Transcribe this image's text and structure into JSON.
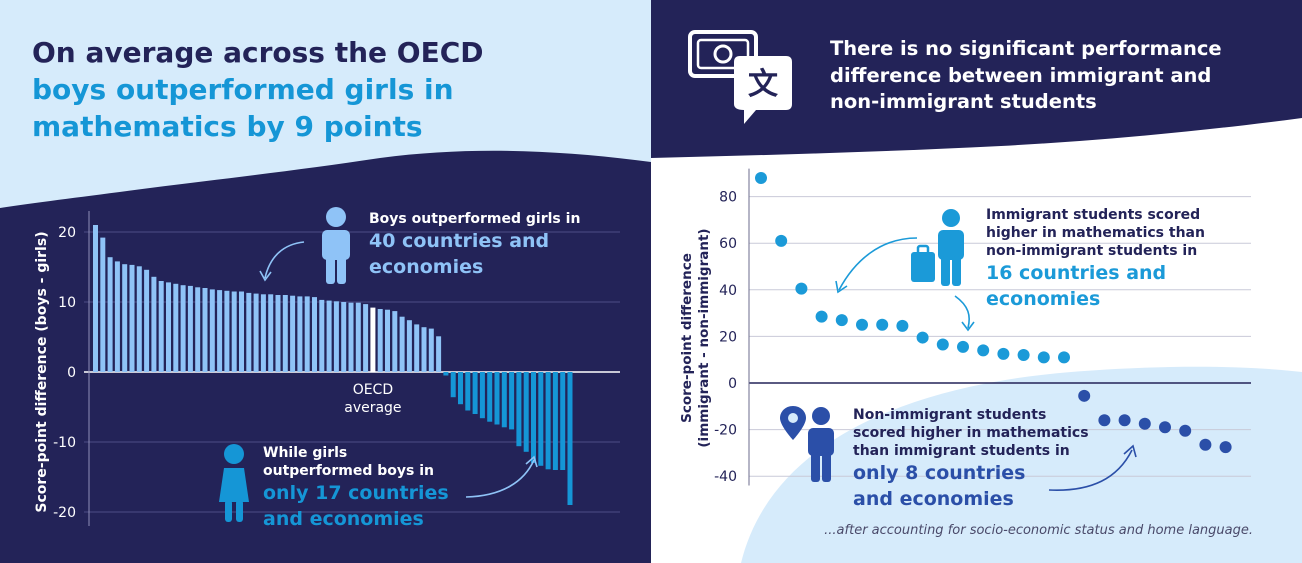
{
  "left": {
    "title_line1": "On average across the OECD",
    "title_line2": "boys outperformed girls in",
    "title_line3": "mathematics by 9 points",
    "annotation_boys_small1": "Boys outperformed girls in",
    "annotation_boys_big1": "40 countries and",
    "annotation_boys_big2": "economies",
    "annotation_girls_small1": "While girls",
    "annotation_girls_small2": "outperformed boys in",
    "annotation_girls_big1": "only 17 countries",
    "annotation_girls_big2": "and economies",
    "oecd_label_line1": "OECD",
    "oecd_label_line2": "average"
  },
  "right": {
    "title_line1": "There is no significant performance",
    "title_line2": "difference between immigrant and",
    "title_line3": "non-immigrant students",
    "annotation_immigrant_small1": "Immigrant students scored",
    "annotation_immigrant_small2": "higher in mathematics than",
    "annotation_immigrant_small3": "non-immigrant students in",
    "annotation_immigrant_big1": "16 countries and",
    "annotation_immigrant_big2": "economies",
    "annotation_nonimmigrant_small1": "Non-immigrant students",
    "annotation_nonimmigrant_small2": "scored higher in mathematics",
    "annotation_nonimmigrant_small3": "than immigrant students in",
    "annotation_nonimmigrant_big1": "only 8 countries",
    "annotation_nonimmigrant_big2": "and economies",
    "footnote": "...after accounting for socio-economic status and home language."
  },
  "colors": {
    "navy": "#232358",
    "light_blue_bg": "#d6ebfb",
    "bright_blue": "#1596d6",
    "light_bar": "#8fc3f7",
    "dot_blue": "#1b9ad8",
    "dot_dark": "#2b4fa8"
  },
  "icons": [
    "boy-icon",
    "girl-icon",
    "money-speech-icon",
    "immigrant-suitcase-icon",
    "location-pin-person-icon"
  ],
  "chart_data": [
    {
      "type": "bar",
      "title": "",
      "xlabel": "",
      "ylabel": "Score-point difference (boys - girls)",
      "ylim": [
        -22,
        23
      ],
      "yticks": [
        20,
        10,
        0,
        -10,
        -20
      ],
      "grid": true,
      "highlight_index": 38,
      "highlight_label": "OECD average",
      "values": [
        21,
        19.2,
        16.4,
        15.8,
        15.4,
        15.3,
        15.1,
        14.6,
        13.6,
        13,
        12.8,
        12.6,
        12.4,
        12.3,
        12.1,
        12,
        11.8,
        11.7,
        11.6,
        11.5,
        11.5,
        11.3,
        11.2,
        11.1,
        11.1,
        11,
        11,
        10.9,
        10.8,
        10.8,
        10.7,
        10.3,
        10.2,
        10.1,
        10,
        9.9,
        9.9,
        9.7,
        9.2,
        9,
        8.9,
        8.7,
        7.9,
        7.4,
        6.8,
        6.4,
        6.2,
        5.1,
        -0.5,
        -3.6,
        -4.6,
        -5.5,
        -6,
        -6.6,
        -7.1,
        -7.5,
        -7.9,
        -8.2,
        -10.6,
        -11.4,
        -13,
        -13.4,
        -13.9,
        -14,
        -14,
        -19
      ]
    },
    {
      "type": "scatter",
      "title": "",
      "xlabel": "",
      "ylabel": "Score-point difference (immigrant - non-immigrant)",
      "ylim": [
        -44,
        92
      ],
      "yticks": [
        80,
        60,
        40,
        20,
        0,
        -20,
        -40
      ],
      "grid": true,
      "values": [
        88,
        61,
        40.5,
        28.5,
        27,
        25,
        25,
        24.5,
        19.5,
        16.5,
        15.5,
        14,
        12.5,
        12,
        11,
        11,
        -5.5,
        -16,
        -16,
        -17.5,
        -19,
        -20.5,
        -26.5,
        -27.5
      ]
    }
  ]
}
